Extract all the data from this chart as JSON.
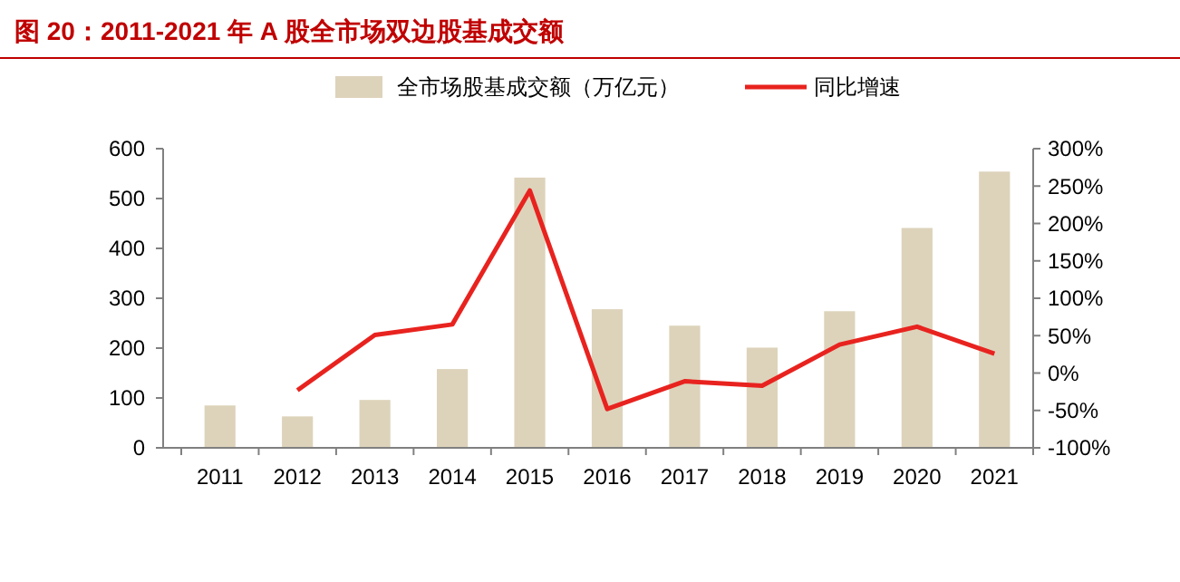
{
  "chart_data": {
    "type": "bar",
    "title": "图 20：2011-2021 年 A 股全市场双边股基成交额",
    "categories": [
      "2011",
      "2012",
      "2013",
      "2014",
      "2015",
      "2016",
      "2017",
      "2018",
      "2019",
      "2020",
      "2021"
    ],
    "series": [
      {
        "name": "全市场股基成交额（万亿元）",
        "color": "#ddd3bb",
        "values": [
          85,
          63,
          96,
          158,
          542,
          278,
          245,
          201,
          274,
          441,
          554
        ]
      },
      {
        "name": "同比增速",
        "type": "line",
        "axis": "y2",
        "color": "#e8231f",
        "values": [
          null,
          -23,
          51,
          65,
          244,
          -48,
          -11,
          -17,
          38,
          62,
          26
        ]
      }
    ],
    "ylim": [
      0,
      600
    ],
    "yticks": [
      0,
      100,
      200,
      300,
      400,
      500,
      600
    ],
    "y2lim": [
      -100,
      300
    ],
    "y2ticks": [
      {
        "value": -100,
        "label": "-100%"
      },
      {
        "value": -50,
        "label": "-50%"
      },
      {
        "value": 0,
        "label": "0%"
      },
      {
        "value": 50,
        "label": "50%"
      },
      {
        "value": 100,
        "label": "100%"
      },
      {
        "value": 150,
        "label": "150%"
      },
      {
        "value": 200,
        "label": "200%"
      },
      {
        "value": 250,
        "label": "250%"
      },
      {
        "value": 300,
        "label": "300%"
      }
    ],
    "legend": "top",
    "grid": false,
    "marker": "none"
  }
}
